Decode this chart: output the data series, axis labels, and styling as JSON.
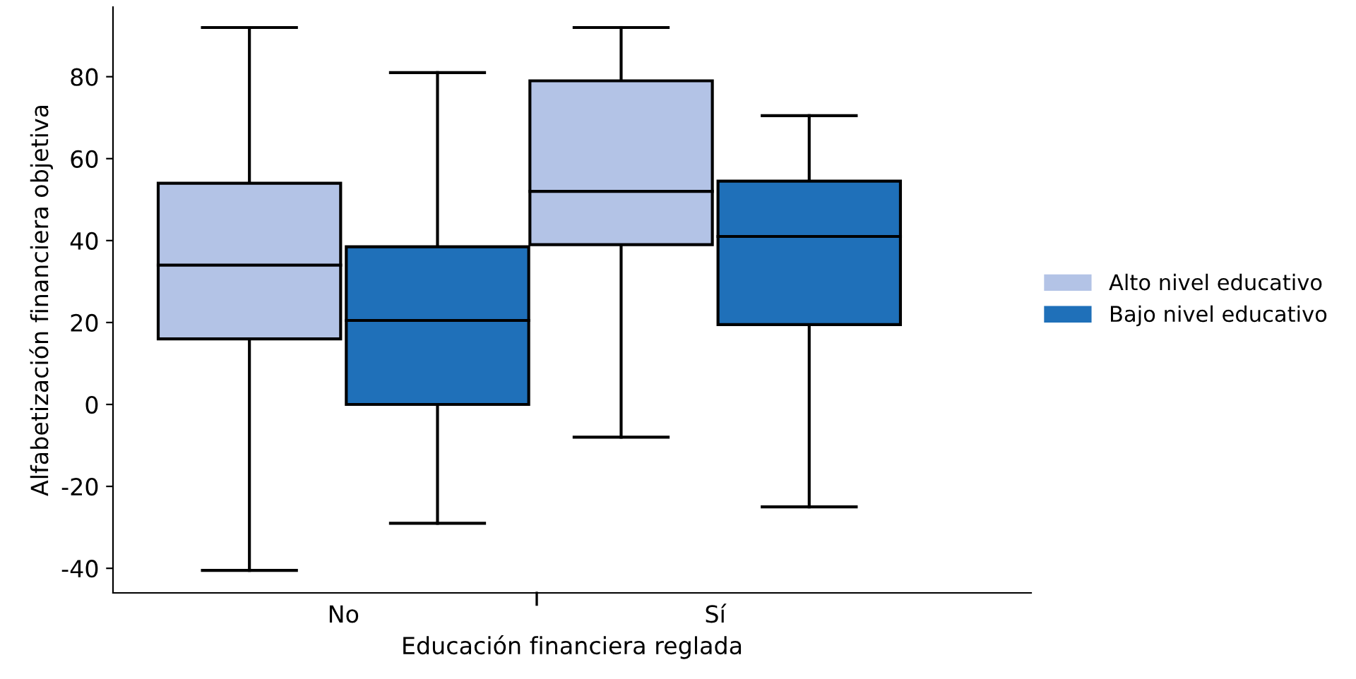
{
  "chart_data": {
    "type": "box",
    "xlabel": "Educación financiera reglada",
    "ylabel": "Alfabetización financiera objetiva",
    "categories": [
      "No",
      "Sí"
    ],
    "ylim": [
      -46,
      97
    ],
    "yticks": [
      {
        "value": -40,
        "label": "-40"
      },
      {
        "value": -20,
        "label": "-20"
      },
      0,
      20,
      40,
      60,
      80
    ],
    "grid": false,
    "legend": "right",
    "series": [
      {
        "name": "Alto nivel educativo",
        "color": "#b3c3e6",
        "boxes": [
          {
            "low": -40.5,
            "q1": 16,
            "median": 34,
            "q3": 54,
            "high": 92
          },
          {
            "low": -8,
            "q1": 39,
            "median": 52,
            "q3": 79,
            "high": 92
          }
        ]
      },
      {
        "name": "Bajo nivel educativo",
        "color": "#1f70b9",
        "boxes": [
          {
            "low": -29,
            "q1": 0,
            "median": 20.5,
            "q3": 38.5,
            "high": 81
          },
          {
            "low": -25,
            "q1": 19.5,
            "median": 41,
            "q3": 54.5,
            "high": 70.5
          }
        ]
      }
    ]
  }
}
